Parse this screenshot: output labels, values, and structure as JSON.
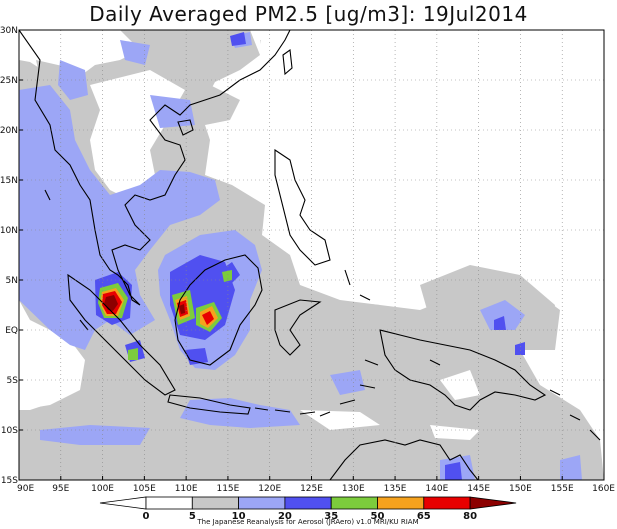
{
  "title": "Daily Averaged PM2.5 [ug/m3]: 19Jul2014",
  "credit": "The Japanese Reanalysis for Aerosol (JRAero) v1.0 MRI/KU RIAM",
  "map": {
    "lon_range": [
      90,
      160
    ],
    "lat_range": [
      -15,
      30
    ],
    "lon_ticks": [
      "90E",
      "95E",
      "100E",
      "105E",
      "110E",
      "115E",
      "120E",
      "125E",
      "130E",
      "135E",
      "140E",
      "145E",
      "150E",
      "155E",
      "160E"
    ],
    "lat_ticks": [
      "30N",
      "25N",
      "20N",
      "15N",
      "10N",
      "5N",
      "EQ",
      "5S",
      "10S",
      "15S"
    ]
  },
  "colorbar": {
    "levels": [
      "0",
      "5",
      "10",
      "20",
      "35",
      "50",
      "65",
      "80"
    ],
    "colors": [
      "#ffffff",
      "#ffffff",
      "#c8c8c8",
      "#9ca6f6",
      "#5050f0",
      "#7ccc3c",
      "#f5a21e",
      "#e80000",
      "#8c0000"
    ]
  }
}
